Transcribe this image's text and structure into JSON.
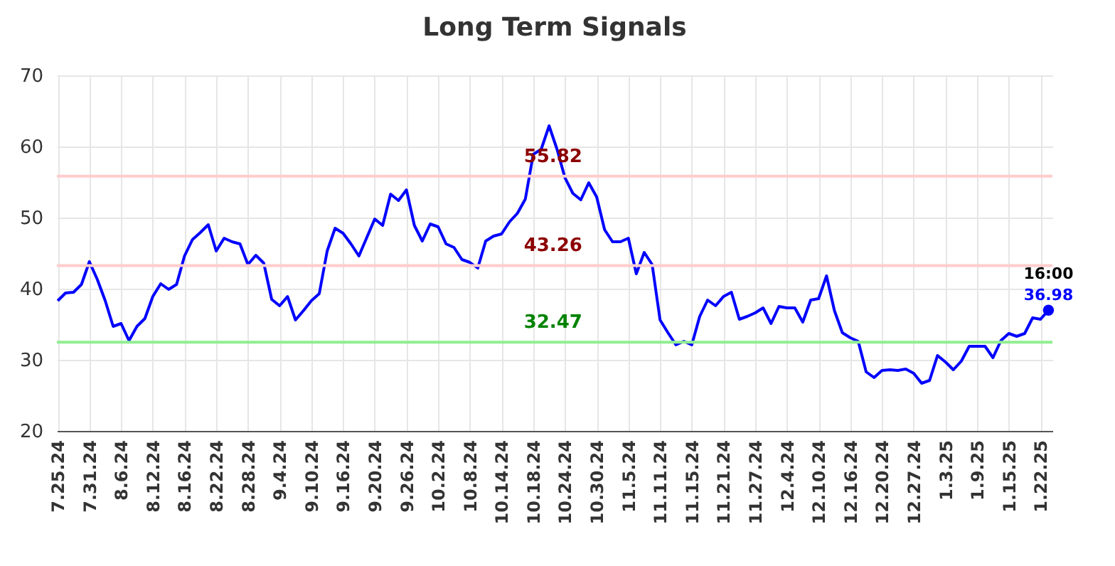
{
  "chart_data": {
    "type": "line",
    "title": "Long Term Signals",
    "categories": [
      "7.25.24",
      null,
      null,
      null,
      "7.31.24",
      null,
      null,
      null,
      "8.6.24",
      null,
      null,
      null,
      "8.12.24",
      null,
      null,
      null,
      "8.16.24",
      null,
      null,
      null,
      "8.22.24",
      null,
      null,
      null,
      "8.28.24",
      null,
      null,
      null,
      "9.4.24",
      null,
      null,
      null,
      "9.10.24",
      null,
      null,
      null,
      "9.16.24",
      null,
      null,
      null,
      "9.20.24",
      null,
      null,
      null,
      "9.26.24",
      null,
      null,
      null,
      "10.2.24",
      null,
      null,
      null,
      "10.8.24",
      null,
      null,
      null,
      "10.14.24",
      null,
      null,
      null,
      "10.18.24",
      null,
      null,
      null,
      "10.24.24",
      null,
      null,
      null,
      "10.30.24",
      null,
      null,
      null,
      "11.5.24",
      null,
      null,
      null,
      "11.11.24",
      null,
      null,
      null,
      "11.15.24",
      null,
      null,
      null,
      "11.21.24",
      null,
      null,
      null,
      "11.27.24",
      null,
      null,
      null,
      "12.4.24",
      null,
      null,
      null,
      "12.10.24",
      null,
      null,
      null,
      "12.16.24",
      null,
      null,
      null,
      "12.20.24",
      null,
      null,
      null,
      "12.27.24",
      null,
      null,
      null,
      "1.3.25",
      null,
      null,
      null,
      "1.9.25",
      null,
      null,
      null,
      "1.15.25",
      null,
      null,
      null,
      "1.22.25",
      null
    ],
    "values": [
      38.3,
      39.4,
      39.5,
      40.6,
      43.8,
      41.3,
      38.3,
      34.7,
      35.1,
      32.7,
      34.7,
      35.8,
      38.9,
      40.7,
      39.9,
      40.6,
      44.6,
      46.9,
      47.9,
      49.0,
      45.3,
      47.1,
      46.6,
      46.3,
      43.4,
      44.7,
      43.6,
      38.5,
      37.6,
      38.9,
      35.6,
      36.9,
      38.3,
      39.3,
      45.3,
      48.5,
      47.8,
      46.3,
      44.6,
      47.2,
      49.8,
      48.9,
      53.3,
      52.4,
      53.9,
      48.9,
      46.7,
      49.1,
      48.7,
      46.3,
      45.8,
      44.1,
      43.7,
      42.9,
      46.7,
      47.4,
      47.7,
      49.4,
      50.6,
      52.6,
      58.9,
      59.6,
      62.9,
      59.6,
      55.6,
      53.4,
      52.5,
      54.9,
      52.9,
      48.3,
      46.6,
      46.6,
      47.1,
      42.1,
      45.1,
      43.4,
      35.6,
      33.8,
      32.1,
      32.6,
      32.1,
      36.1,
      38.4,
      37.6,
      38.9,
      39.5,
      35.7,
      36.1,
      36.6,
      37.3,
      35.1,
      37.5,
      37.3,
      37.3,
      35.3,
      38.4,
      38.6,
      41.8,
      36.9,
      33.8,
      33.1,
      32.6,
      28.3,
      27.5,
      28.5,
      28.6,
      28.5,
      28.7,
      28.1,
      26.7,
      27.1,
      30.6,
      29.7,
      28.6,
      29.8,
      31.9,
      31.9,
      31.9,
      30.3,
      32.7,
      33.7,
      33.3,
      33.7,
      35.9,
      35.7,
      36.98
    ],
    "value_labels": [
      null,
      null,
      null,
      null,
      null,
      null,
      null,
      null,
      null,
      null,
      null,
      null,
      null,
      null,
      null,
      null,
      null,
      null,
      null,
      null,
      null,
      null,
      null,
      null,
      null,
      null,
      null,
      null,
      null,
      null,
      null,
      null,
      null,
      null,
      null,
      null,
      null,
      null,
      null,
      null,
      null,
      null,
      null,
      null,
      null,
      null,
      null,
      null,
      null,
      null,
      null,
      null,
      null,
      null,
      null,
      null,
      null,
      null,
      null,
      null,
      null,
      null,
      null,
      null,
      null,
      null,
      null,
      null,
      null,
      null,
      null,
      null,
      null,
      null,
      null,
      null,
      null,
      null,
      null,
      null,
      null,
      null,
      null,
      null,
      null,
      null,
      null,
      null,
      null,
      null,
      null,
      null,
      null,
      null,
      null,
      null,
      null,
      null,
      null,
      null,
      null,
      null,
      null,
      null,
      null,
      null,
      null,
      null,
      null,
      null,
      null,
      null,
      null,
      null,
      null,
      null,
      null,
      null,
      null,
      null,
      null,
      null,
      null,
      null,
      null,
      "36.98"
    ],
    "annotations": [
      "16:00"
    ],
    "color": "#0000ff",
    "ylim": [
      20,
      70
    ],
    "yticks": [
      20,
      30,
      40,
      50,
      60,
      70
    ],
    "grid": true,
    "ref_lines": [
      {
        "axis": "y",
        "value": 55.82,
        "label": "55.82",
        "color": "#ffcccc"
      },
      {
        "axis": "y",
        "value": 43.26,
        "label": "43.26",
        "color": "#ffcccc"
      },
      {
        "axis": "y",
        "value": 32.47,
        "label": "32.47",
        "color": "#90ee90"
      }
    ]
  }
}
